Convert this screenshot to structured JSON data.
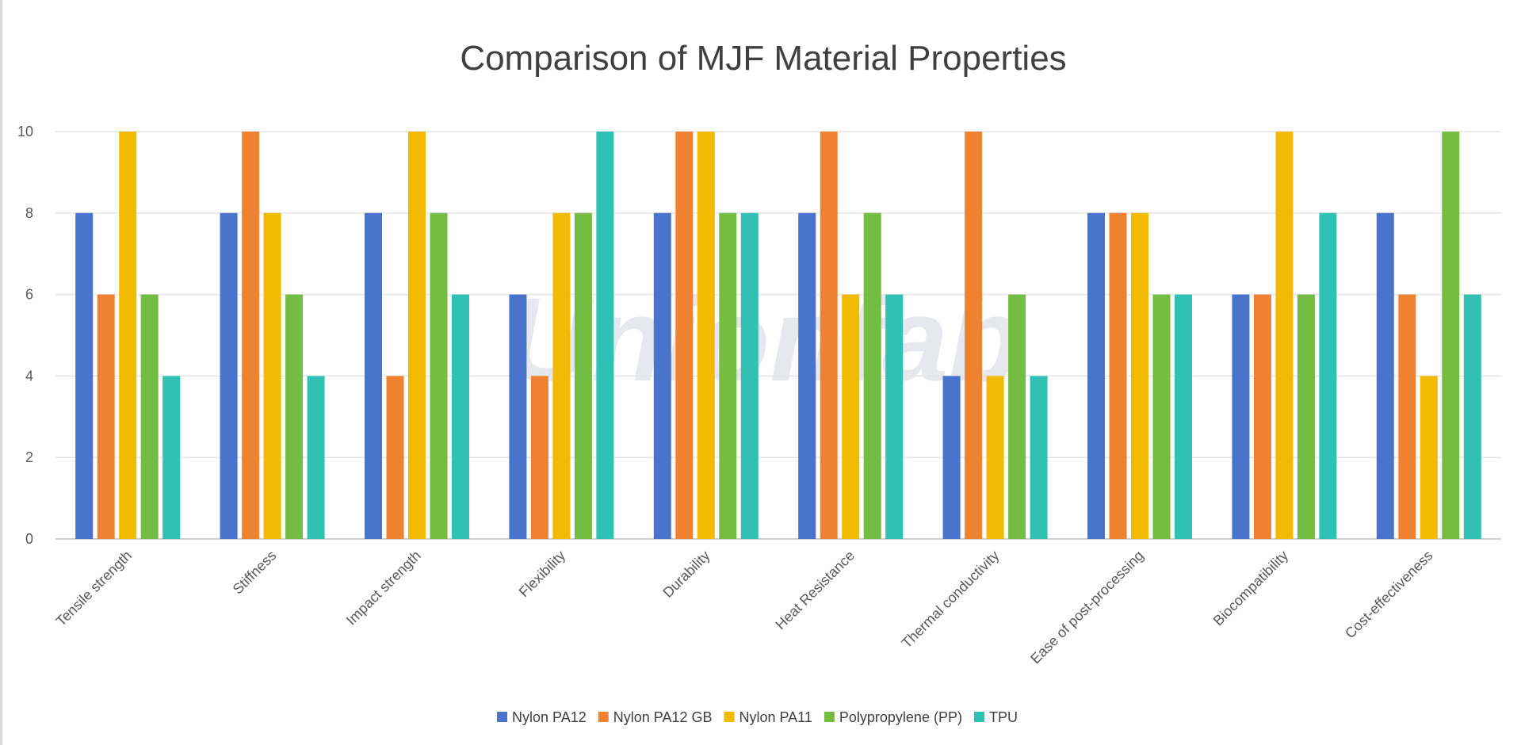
{
  "chart_data": {
    "type": "bar",
    "title": "Comparison of MJF Material Properties",
    "xlabel": "",
    "ylabel": "",
    "ylim": [
      0,
      10
    ],
    "yticks": [
      0,
      2,
      4,
      6,
      8,
      10
    ],
    "grid": true,
    "legend_position": "bottom",
    "categories": [
      "Tensile strength",
      "Stiffness",
      "Impact strength",
      "Flexibility",
      "Durability",
      "Heat Resistance",
      "Thermal conductivity",
      "Ease of post-processing",
      "Biocompatibility",
      "Cost-effectiveness"
    ],
    "series": [
      {
        "name": "Nylon PA12",
        "color": "#4874CB",
        "values": [
          8,
          8,
          8,
          6,
          8,
          8,
          4,
          8,
          6,
          8
        ]
      },
      {
        "name": "Nylon PA12 GB",
        "color": "#EE8231",
        "values": [
          6,
          10,
          4,
          4,
          10,
          10,
          10,
          8,
          6,
          6
        ]
      },
      {
        "name": "Nylon PA11",
        "color": "#F2BA02",
        "values": [
          10,
          8,
          10,
          8,
          10,
          6,
          4,
          8,
          10,
          4
        ]
      },
      {
        "name": "Polypropylene (PP)",
        "color": "#75BD42",
        "values": [
          6,
          6,
          8,
          8,
          8,
          8,
          6,
          6,
          6,
          10
        ]
      },
      {
        "name": "TPU",
        "color": "#30C0B4",
        "values": [
          4,
          4,
          6,
          10,
          8,
          6,
          4,
          6,
          8,
          6
        ]
      }
    ]
  },
  "watermark": "Unionfab"
}
